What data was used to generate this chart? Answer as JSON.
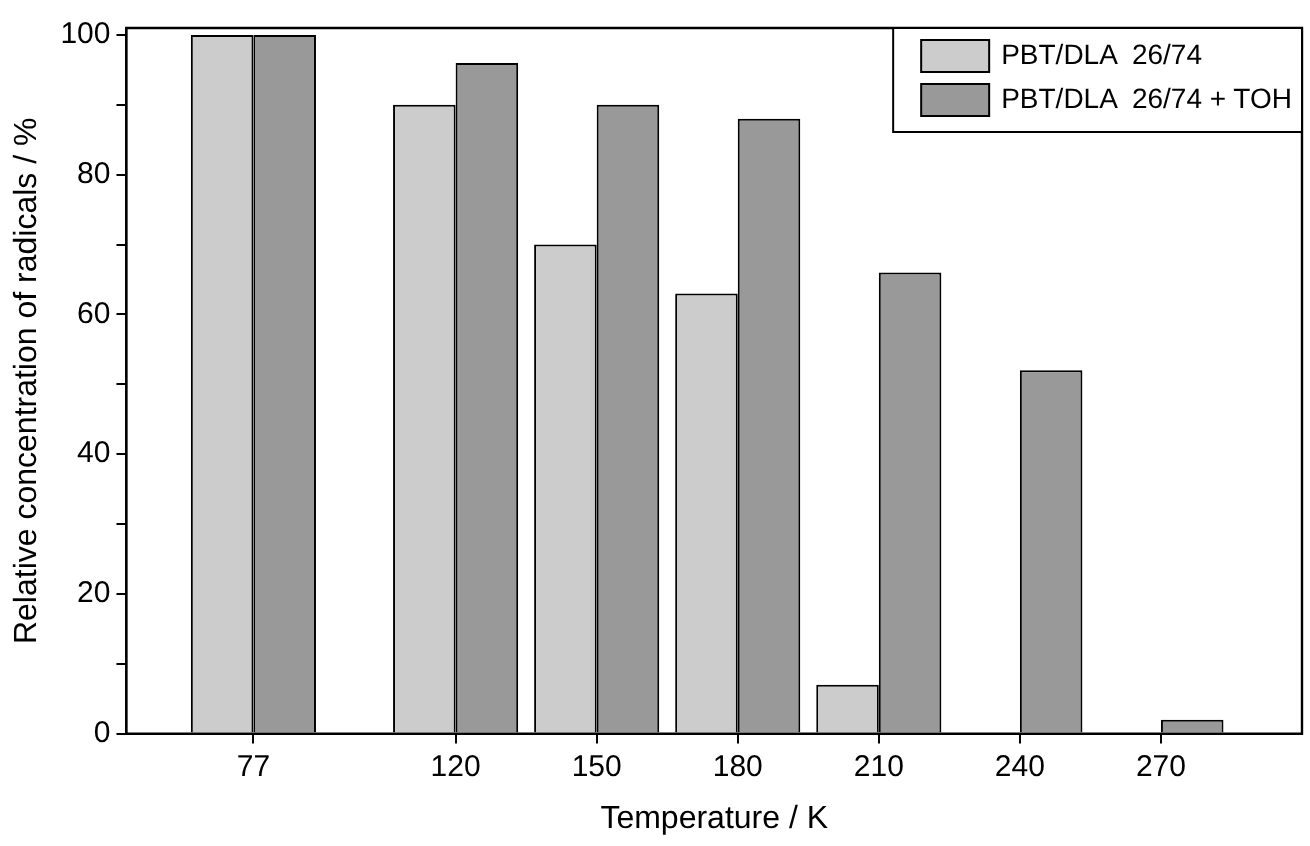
{
  "chart_data": {
    "type": "bar",
    "xlabel": "Temperature / K",
    "ylabel": "Relative concentration of radicals / %",
    "x": [
      77,
      120,
      150,
      180,
      210,
      240,
      270
    ],
    "series": [
      {
        "name": "PBT/DLA  26/74",
        "color": "#cccccc",
        "values": [
          100,
          90,
          70,
          63,
          7,
          null,
          null
        ]
      },
      {
        "name": "PBT/DLA  26/74 + TOH",
        "color": "#999999",
        "values": [
          100,
          96,
          90,
          88,
          66,
          52,
          2
        ]
      }
    ],
    "xlim": [
      50,
      300
    ],
    "xticks": [
      77,
      120,
      150,
      180,
      210,
      240,
      270
    ],
    "ylim": [
      0,
      101
    ],
    "yticks": [
      0,
      {
        "value": 10,
        "label": null
      },
      20,
      {
        "value": 30,
        "label": null
      },
      40,
      {
        "value": 50,
        "label": null
      },
      60,
      {
        "value": 70,
        "label": null
      },
      80,
      {
        "value": 90,
        "label": null
      },
      100
    ],
    "grid": false,
    "legend": "top right"
  }
}
